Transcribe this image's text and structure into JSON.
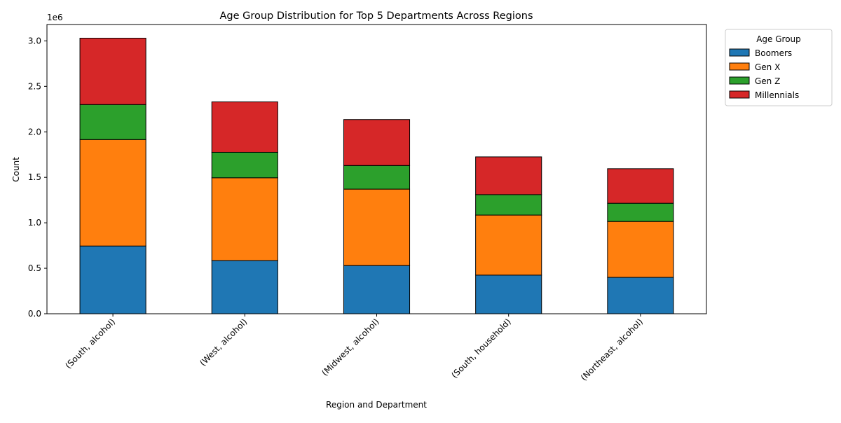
{
  "chart_data": {
    "type": "bar",
    "stacked": true,
    "title": "Age Group Distribution for Top 5 Departments Across Regions",
    "xlabel": "Region and Department",
    "ylabel": "Count",
    "y_offset_label": "1e6",
    "ylim": [
      0,
      3180000
    ],
    "yticks": [
      {
        "value": 0,
        "label": "0.0"
      },
      {
        "value": 500000,
        "label": "0.5"
      },
      {
        "value": 1000000,
        "label": "1.0"
      },
      {
        "value": 1500000,
        "label": "1.5"
      },
      {
        "value": 2000000,
        "label": "2.0"
      },
      {
        "value": 2500000,
        "label": "2.5"
      },
      {
        "value": 3000000,
        "label": "3.0"
      }
    ],
    "categories": [
      "(South, alcohol)",
      "(West, alcohol)",
      "(Midwest, alcohol)",
      "(South, household)",
      "(Northeast, alcohol)"
    ],
    "series": [
      {
        "name": "Boomers",
        "color": "#1f77b4",
        "values": [
          745000,
          585000,
          530000,
          425000,
          400000
        ]
      },
      {
        "name": "Gen X",
        "color": "#ff7f0e",
        "values": [
          1170000,
          910000,
          840000,
          660000,
          615000
        ]
      },
      {
        "name": "Gen Z",
        "color": "#2ca02c",
        "values": [
          385000,
          280000,
          260000,
          225000,
          200000
        ]
      },
      {
        "name": "Millennials",
        "color": "#d62728",
        "values": [
          730000,
          555000,
          505000,
          415000,
          380000
        ]
      }
    ],
    "legend": {
      "title": "Age Group",
      "placement": "outside-top-right"
    },
    "grid": false
  }
}
